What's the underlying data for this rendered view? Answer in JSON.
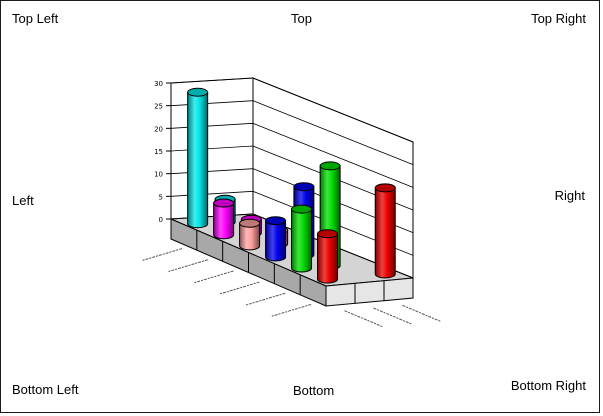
{
  "labels": {
    "top_left": "Top Left",
    "top": "Top",
    "top_right": "Top Right",
    "left": "Left",
    "right": "Right",
    "bottom_left": "Bottom Left",
    "bottom": "Bottom",
    "bottom_right": "Bottom Right"
  },
  "chart_data": {
    "type": "bar",
    "style": "3d-cylinder",
    "title": "",
    "xlabel": "",
    "ylabel": "",
    "y_ticks": [
      "0",
      "5",
      "10",
      "15",
      "20",
      "25",
      "30"
    ],
    "ylim": [
      0,
      30
    ],
    "grid": true,
    "legend": "none",
    "series": [
      {
        "color": "#00e5e5",
        "values": [
          29,
          5,
          null
        ]
      },
      {
        "color": "#ff00ff",
        "values": [
          7,
          3,
          null
        ]
      },
      {
        "color": "#ff9f9f",
        "values": [
          5,
          3,
          null
        ]
      },
      {
        "color": "#0000ee",
        "values": [
          8,
          15,
          null
        ]
      },
      {
        "color": "#00dd00",
        "values": [
          13,
          22,
          null
        ]
      },
      {
        "color": "#ee0000",
        "values": [
          10,
          null,
          19
        ]
      }
    ]
  }
}
